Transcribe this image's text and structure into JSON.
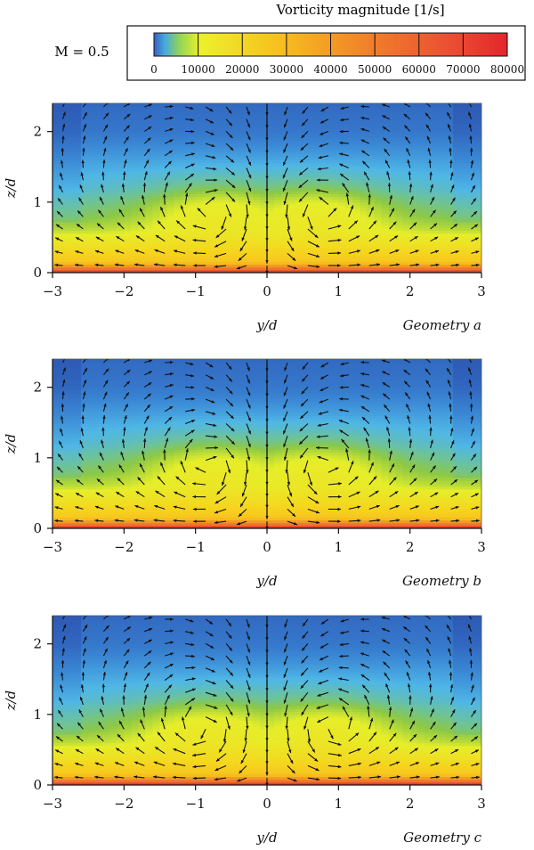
{
  "colorbar": {
    "title": "Vorticity magnitude [1/s]",
    "mach_label": "M = 0.5",
    "ticks": [
      "0",
      "10000",
      "20000",
      "30000",
      "40000",
      "50000",
      "60000",
      "70000",
      "80000"
    ],
    "range": [
      0,
      80000
    ]
  },
  "chart_data": [
    {
      "type": "heatmap",
      "title": "Geometry a",
      "xlabel": "y/d",
      "ylabel": "z/d",
      "xlim": [
        -3,
        3
      ],
      "ylim": [
        0,
        2.4
      ],
      "xticks": [
        "−3",
        "−2",
        "−1",
        "0",
        "1",
        "2",
        "3"
      ],
      "yticks": [
        "0",
        "1",
        "2"
      ],
      "vortex_center": [
        0.75,
        0.85
      ],
      "vorticity_bands": [
        {
          "z": 0.0,
          "value": 80000
        },
        {
          "z": 0.05,
          "value": 55000
        },
        {
          "z": 0.15,
          "value": 22000
        },
        {
          "z": 0.35,
          "value": 15000
        },
        {
          "z": 0.6,
          "value": 9000
        },
        {
          "z": 0.8,
          "value": 7000
        },
        {
          "z": 1.2,
          "value": 4500
        },
        {
          "z": 1.6,
          "value": 3200
        },
        {
          "z": 2.0,
          "value": 1800
        },
        {
          "z": 2.4,
          "value": 1200
        }
      ]
    },
    {
      "type": "heatmap",
      "title": "Geometry b",
      "xlabel": "y/d",
      "ylabel": "z/d",
      "xlim": [
        -3,
        3
      ],
      "ylim": [
        0,
        2.4
      ],
      "xticks": [
        "−3",
        "−2",
        "−1",
        "0",
        "1",
        "2",
        "3"
      ],
      "yticks": [
        "0",
        "1",
        "2"
      ],
      "vortex_center": [
        0.8,
        0.85
      ],
      "vorticity_bands": [
        {
          "z": 0.0,
          "value": 80000
        },
        {
          "z": 0.05,
          "value": 55000
        },
        {
          "z": 0.15,
          "value": 22000
        },
        {
          "z": 0.35,
          "value": 15000
        },
        {
          "z": 0.6,
          "value": 9000
        },
        {
          "z": 0.8,
          "value": 7000
        },
        {
          "z": 1.2,
          "value": 4500
        },
        {
          "z": 1.6,
          "value": 3200
        },
        {
          "z": 2.0,
          "value": 1800
        },
        {
          "z": 2.4,
          "value": 1200
        }
      ]
    },
    {
      "type": "heatmap",
      "title": "Geometry c",
      "xlabel": "y/d",
      "ylabel": "z/d",
      "xlim": [
        -3,
        3
      ],
      "ylim": [
        0,
        2.4
      ],
      "xticks": [
        "−3",
        "−2",
        "−1",
        "0",
        "1",
        "2",
        "3"
      ],
      "yticks": [
        "0",
        "1",
        "2"
      ],
      "vortex_center": [
        0.9,
        0.8
      ],
      "vorticity_bands": [
        {
          "z": 0.0,
          "value": 80000
        },
        {
          "z": 0.05,
          "value": 55000
        },
        {
          "z": 0.15,
          "value": 22000
        },
        {
          "z": 0.35,
          "value": 15000
        },
        {
          "z": 0.6,
          "value": 9000
        },
        {
          "z": 0.8,
          "value": 7000
        },
        {
          "z": 1.2,
          "value": 4500
        },
        {
          "z": 1.6,
          "value": 3200
        },
        {
          "z": 2.0,
          "value": 1800
        },
        {
          "z": 2.4,
          "value": 1200
        }
      ]
    }
  ],
  "colors": {
    "colormap": [
      "#2b4fa8",
      "#3a86d4",
      "#4fb7e6",
      "#7cc96a",
      "#9ccf3a",
      "#e8ef2a",
      "#f6c21e",
      "#f38a1e",
      "#e8472b",
      "#d81c1c"
    ],
    "arrows": "#111111"
  }
}
